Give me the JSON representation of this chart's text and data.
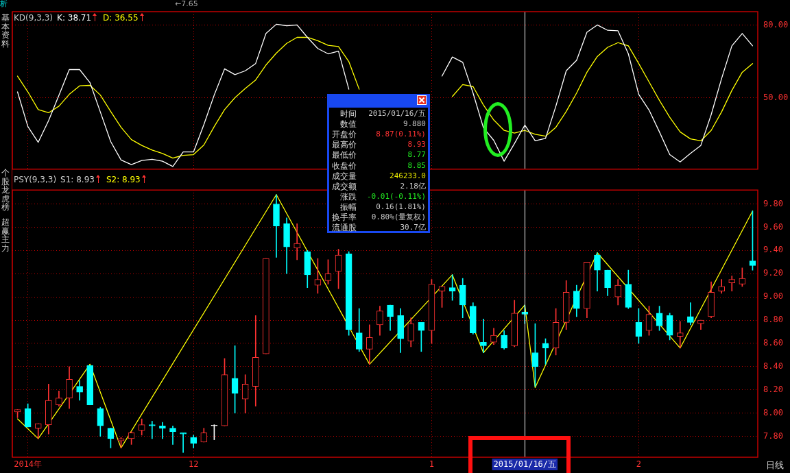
{
  "chart_data": [
    {
      "type": "line",
      "title": "KD(9,3,3)",
      "categories": [
        null,
        "2014年",
        null,
        null,
        null,
        null,
        null,
        null,
        null,
        null,
        null,
        null,
        null,
        null,
        null,
        null,
        null,
        "12",
        null,
        null,
        null,
        null,
        null,
        null,
        null,
        null,
        null,
        null,
        null,
        null,
        null,
        null,
        null,
        null,
        null,
        null,
        null,
        null,
        null,
        null,
        "1",
        null,
        null,
        null,
        null,
        null,
        null,
        null,
        null,
        "2015/01/16/五",
        null,
        null,
        null,
        null,
        null,
        null,
        null,
        null,
        null,
        null,
        "2",
        null,
        null,
        null,
        null,
        null,
        null,
        null,
        null,
        null,
        null,
        null
      ],
      "series": [
        {
          "name": "K: 38.71",
          "color": "#ffffff",
          "values": [
            52.4,
            38.1,
            31.6,
            40.5,
            51,
            61.6,
            61.6,
            56.2,
            44.1,
            31.9,
            24.3,
            22.4,
            24.1,
            24.6,
            23.8,
            21.6,
            27.6,
            27.6,
            38.9,
            51.1,
            61.9,
            59.5,
            61.1,
            64.1,
            76.5,
            80.3,
            79.7,
            80.0,
            74.9,
            70.3,
            68.1,
            69.2,
            53.5,
            null,
            null,
            null,
            null,
            null,
            null,
            null,
            null,
            58.9,
            66.8,
            64.6,
            51.9,
            37.6,
            32.4,
            23.8,
            31.1,
            38.7,
            32.2,
            33.2,
            46.5,
            61.1,
            65.4,
            77.0,
            80.0,
            77.8,
            77.6,
            68.1,
            51.4,
            44.9,
            35.9,
            26.5,
            23.5,
            27.0,
            30.3,
            43.0,
            57.8,
            71.4,
            76.5,
            71.4
          ]
        },
        {
          "name": "D: 36.55",
          "color": "#ffff00",
          "values": [
            58.9,
            52.4,
            45.1,
            43.8,
            46.5,
            51.4,
            54.9,
            55.1,
            51.1,
            44.3,
            37.8,
            32.7,
            30.3,
            28.4,
            27.0,
            25.1,
            26.2,
            26.5,
            30.5,
            38.1,
            45.1,
            50.0,
            53.8,
            57.3,
            63.5,
            68.4,
            72.4,
            74.9,
            74.9,
            73.5,
            71.6,
            71.1,
            64.9,
            53.5,
            null,
            null,
            null,
            null,
            null,
            null,
            null,
            null,
            50.5,
            55.4,
            54.6,
            47.0,
            40.8,
            36.5,
            35.4,
            36.5,
            34.9,
            34.1,
            37.8,
            44.3,
            51.9,
            60.5,
            67.0,
            70.8,
            72.7,
            71.4,
            64.1,
            56.5,
            48.9,
            41.9,
            35.9,
            33.0,
            32.2,
            36.5,
            44.1,
            53.0,
            60.5,
            64.1
          ]
        }
      ],
      "ylim": [
        20.5,
        85.5
      ],
      "yticks": [
        {
          "value": 50,
          "label": "50.00"
        },
        {
          "value": 80,
          "label": "80.00"
        }
      ],
      "grid": true,
      "legend": "top left",
      "tick_labels": "y",
      "marker": "none",
      "ref_lines": [
        {
          "axis": "x",
          "value": "2015/01/16/五",
          "color": "#ffffff"
        }
      ]
    },
    {
      "type": "candlestick",
      "title": "PSY(9,3,3)",
      "categories": [
        null,
        "2014年",
        null,
        null,
        null,
        null,
        null,
        null,
        null,
        null,
        null,
        null,
        null,
        null,
        null,
        null,
        null,
        "12",
        null,
        null,
        null,
        null,
        null,
        null,
        null,
        null,
        null,
        null,
        null,
        null,
        null,
        null,
        null,
        null,
        null,
        null,
        null,
        null,
        null,
        null,
        "1",
        null,
        null,
        null,
        null,
        null,
        null,
        null,
        null,
        "2015/01/16/五",
        null,
        null,
        null,
        null,
        null,
        null,
        null,
        null,
        null,
        null,
        "2",
        null,
        null,
        null,
        null,
        null,
        null,
        null,
        null,
        null,
        null,
        null
      ],
      "ohlc": [
        [
          8.01,
          8.03,
          7.96,
          8.03
        ],
        [
          8.04,
          8.08,
          7.88,
          7.88
        ],
        [
          7.87,
          7.91,
          7.78,
          7.91
        ],
        [
          7.9,
          8.25,
          7.82,
          8.11
        ],
        [
          8.07,
          8.19,
          8.06,
          8.13
        ],
        [
          8.13,
          8.4,
          8.04,
          8.29
        ],
        [
          8.23,
          8.28,
          8.11,
          8.18
        ],
        [
          8.41,
          8.41,
          8.07,
          8.07
        ],
        [
          8.04,
          8.05,
          7.8,
          7.89
        ],
        [
          7.87,
          7.87,
          7.7,
          7.78
        ],
        [
          7.76,
          7.79,
          7.7,
          7.78
        ],
        [
          7.78,
          7.84,
          7.73,
          7.83
        ],
        [
          7.85,
          7.95,
          7.81,
          7.9
        ],
        [
          7.9,
          7.93,
          7.78,
          7.89
        ],
        [
          7.89,
          7.92,
          7.78,
          7.87
        ],
        [
          7.87,
          7.89,
          7.73,
          7.84
        ],
        [
          7.83,
          7.83,
          7.66,
          7.82
        ],
        [
          7.79,
          7.81,
          7.7,
          7.74
        ],
        [
          7.75,
          7.87,
          7.75,
          7.83
        ],
        [
          7.89,
          7.9,
          7.77,
          7.89
        ],
        [
          7.89,
          8.47,
          7.89,
          8.33
        ],
        [
          8.3,
          8.58,
          8.0,
          8.17
        ],
        [
          8.12,
          8.33,
          8.0,
          8.25
        ],
        [
          8.23,
          8.84,
          8.06,
          8.48
        ],
        [
          8.51,
          9.33,
          8.51,
          9.33
        ],
        [
          9.8,
          9.88,
          9.34,
          9.61
        ],
        [
          9.63,
          9.68,
          9.2,
          9.43
        ],
        [
          9.42,
          9.63,
          9.32,
          9.46
        ],
        [
          9.39,
          9.4,
          9.08,
          9.19
        ],
        [
          9.1,
          9.33,
          9.03,
          9.15
        ],
        [
          9.14,
          9.32,
          9.11,
          9.2
        ],
        [
          9.22,
          9.41,
          9.07,
          9.36
        ],
        [
          9.37,
          9.39,
          8.67,
          8.72
        ],
        [
          8.69,
          8.9,
          8.53,
          8.55
        ],
        [
          8.55,
          8.76,
          8.42,
          8.65
        ],
        [
          8.76,
          8.92,
          8.67,
          8.88
        ],
        [
          8.93,
          8.93,
          8.71,
          8.83
        ],
        [
          8.84,
          8.9,
          8.52,
          8.64
        ],
        [
          8.62,
          8.82,
          8.57,
          8.77
        ],
        [
          8.78,
          8.78,
          8.53,
          8.71
        ],
        [
          8.71,
          9.15,
          8.6,
          9.11
        ],
        [
          9.05,
          9.09,
          8.91,
          9.09
        ],
        [
          9.08,
          9.19,
          8.97,
          9.05
        ],
        [
          9.1,
          9.16,
          8.82,
          8.93
        ],
        [
          8.92,
          8.95,
          8.68,
          8.69
        ],
        [
          8.61,
          8.81,
          8.52,
          8.58
        ],
        [
          8.61,
          8.73,
          8.59,
          8.67
        ],
        [
          8.67,
          8.71,
          8.55,
          8.56
        ],
        [
          8.58,
          8.97,
          8.57,
          8.86
        ],
        [
          8.87,
          8.93,
          8.77,
          8.85
        ],
        [
          8.52,
          8.77,
          8.23,
          8.4
        ],
        [
          8.6,
          8.64,
          8.42,
          8.56
        ],
        [
          8.56,
          8.9,
          8.5,
          8.78
        ],
        [
          8.78,
          9.14,
          8.72,
          9.04
        ],
        [
          9.05,
          9.1,
          8.83,
          8.9
        ],
        [
          8.9,
          9.3,
          8.82,
          9.3
        ],
        [
          9.36,
          9.38,
          9.05,
          9.23
        ],
        [
          9.23,
          9.23,
          9.01,
          9.08
        ],
        [
          9.0,
          9.15,
          8.93,
          9.1
        ],
        [
          9.11,
          9.23,
          8.9,
          8.91
        ],
        [
          8.78,
          8.9,
          8.6,
          8.66
        ],
        [
          8.71,
          8.92,
          8.67,
          8.85
        ],
        [
          8.86,
          8.92,
          8.71,
          8.75
        ],
        [
          8.84,
          8.86,
          8.63,
          8.67
        ],
        [
          8.66,
          8.79,
          8.56,
          8.69
        ],
        [
          8.83,
          8.95,
          8.76,
          8.78
        ],
        [
          8.77,
          8.8,
          8.72,
          8.8
        ],
        [
          8.83,
          9.13,
          8.82,
          9.04
        ],
        [
          9.05,
          9.15,
          9.03,
          9.09
        ],
        [
          9.12,
          9.18,
          9.05,
          9.15
        ],
        [
          9.11,
          9.25,
          9.09,
          9.16
        ],
        [
          9.31,
          9.74,
          9.23,
          9.27
        ]
      ],
      "series": [
        {
          "type": "line",
          "color": "#ffff00",
          "values": [
            7.95,
            null,
            7.78,
            null,
            null,
            null,
            null,
            8.42,
            null,
            null,
            7.7,
            null,
            null,
            null,
            null,
            null,
            null,
            null,
            null,
            null,
            null,
            null,
            null,
            null,
            null,
            9.88,
            null,
            null,
            null,
            null,
            null,
            null,
            null,
            null,
            8.42,
            null,
            null,
            null,
            null,
            null,
            null,
            null,
            9.19,
            null,
            null,
            8.52,
            null,
            null,
            null,
            8.93,
            8.22,
            null,
            null,
            null,
            null,
            null,
            9.38,
            null,
            null,
            null,
            null,
            null,
            null,
            null,
            8.56,
            null,
            null,
            null,
            null,
            null,
            null,
            9.74
          ],
          "colors": [
            "#ffffff",
            null,
            "#ffff00",
            null,
            null,
            null,
            null,
            "#ffffff",
            null,
            null,
            "#ffff00",
            null,
            null,
            null,
            null,
            null,
            null,
            null,
            null,
            null,
            null,
            null,
            null,
            null,
            null,
            "#ffffff",
            null,
            null,
            null,
            null,
            null,
            null,
            null,
            null,
            "#ffff00",
            null,
            null,
            null,
            null,
            null,
            null,
            null,
            "#ffffff",
            null,
            null,
            "#ffff00",
            null,
            null,
            null,
            "#ffff00",
            "#ffff00",
            null,
            null,
            null,
            null,
            null,
            "#ffffff",
            null,
            null,
            null,
            null,
            null,
            null,
            null,
            "#ffff00",
            null,
            null,
            null,
            null,
            null,
            null,
            "#ffff00"
          ]
        }
      ],
      "ylim": [
        7.62,
        9.92
      ],
      "yticks": [
        {
          "value": 7.8,
          "label": "7.80"
        },
        {
          "value": 8.0,
          "label": "8.00"
        },
        {
          "value": 8.2,
          "label": "8.20"
        },
        {
          "value": 8.4,
          "label": "8.40"
        },
        {
          "value": 8.6,
          "label": "8.60"
        },
        {
          "value": 8.8,
          "label": "8.80"
        },
        {
          "value": 9.0,
          "label": "9.00"
        },
        {
          "value": 9.2,
          "label": "9.20"
        },
        {
          "value": 9.4,
          "label": "9.40"
        },
        {
          "value": 9.6,
          "label": "9.60"
        },
        {
          "value": 9.8,
          "label": "9.80"
        }
      ],
      "grid": true,
      "marker": "none",
      "ref_lines": [
        {
          "axis": "x",
          "value": "2015/01/16/五",
          "color": "#ffffff"
        }
      ],
      "annotations": [
        "S1: 8.93",
        "S2: 8.93",
        "时间 2015/01/16/五",
        "数值 9.880",
        "开盘价 8.87(0.11%)",
        "最高价 8.93",
        "最低价 8.77",
        "收盘价 8.85",
        "成交量 246233.0",
        "成交额 2.18亿",
        "涨跌 -0.01(-0.11%)",
        "振幅 0.16(1.81%)",
        "换手率 0.80%(量复权)",
        "流通股 30.7亿",
        "←7.65",
        "析",
        "日线",
        "基本资料",
        "个股龙虎榜",
        "超赢主力"
      ]
    }
  ]
}
